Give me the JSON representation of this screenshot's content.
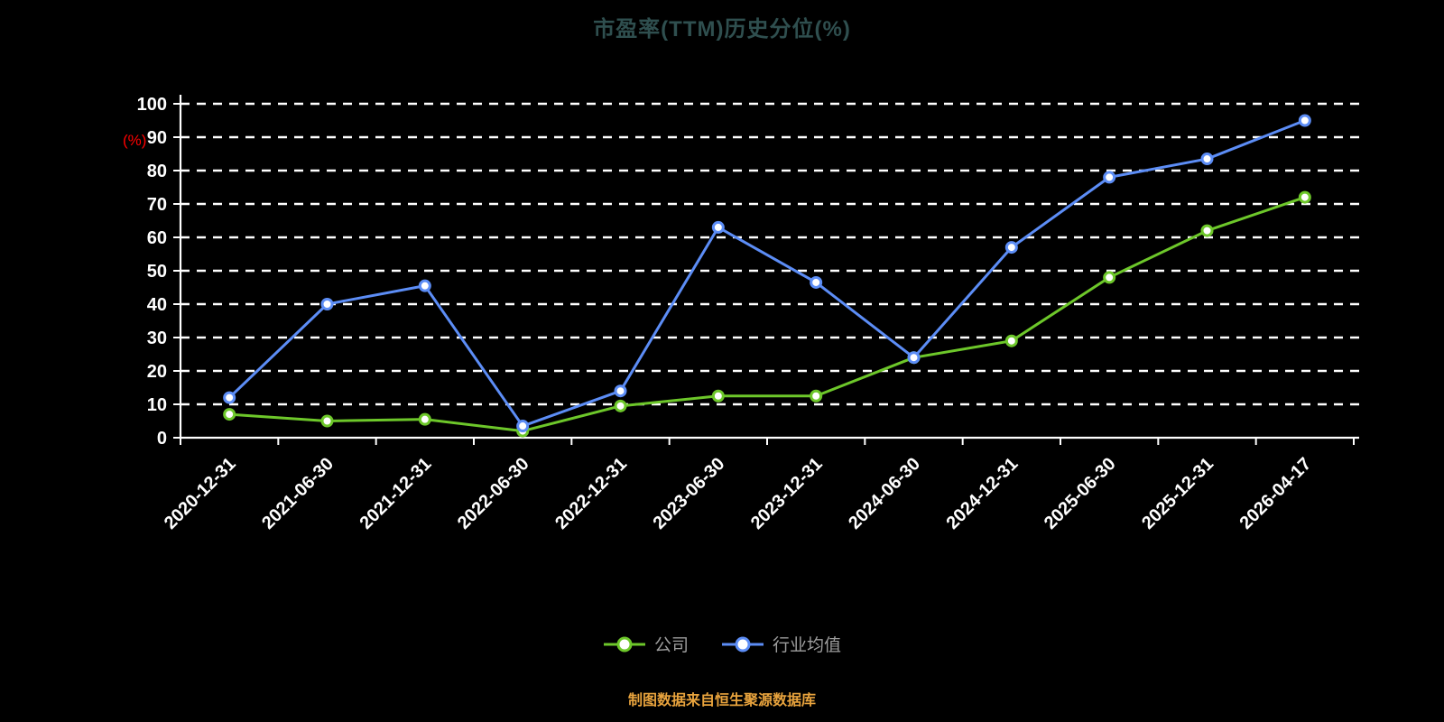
{
  "page": {
    "background_color": "#000000"
  },
  "header": {
    "title_color": "#2F4F4F"
  },
  "footer": {
    "source_text": "制图数据来自恒生聚源数据库",
    "source_color": "#E8A33D"
  },
  "chart_data": {
    "type": "line",
    "title": "市盈率(TTM)历史分位(%)",
    "ylabel": "(%)",
    "ylabel_color": "#FF0000",
    "xlabel": "",
    "ylim": [
      0,
      100
    ],
    "ytick_step": 10,
    "grid": "dashed-horizontal",
    "axis_color": "#FFFFFF",
    "tick_label_color": "#FFFFFF",
    "legend_position": "bottom",
    "categories": [
      "2020-12-31",
      "2021-06-30",
      "2021-12-31",
      "2022-06-30",
      "2022-12-31",
      "2023-06-30",
      "2023-12-31",
      "2024-06-30",
      "2024-12-31",
      "2025-06-30",
      "2025-12-31",
      "2026-04-17"
    ],
    "series": [
      {
        "name": "公司",
        "color": "#6DC72A",
        "values": [
          7,
          5,
          5.5,
          2,
          9.5,
          12.5,
          12.5,
          24,
          29,
          48,
          62,
          72
        ]
      },
      {
        "name": "行业均值",
        "color": "#5C8DF6",
        "values": [
          12,
          40,
          45.5,
          3.5,
          14,
          63,
          46.5,
          24,
          57,
          78,
          83.5,
          95
        ]
      }
    ]
  }
}
